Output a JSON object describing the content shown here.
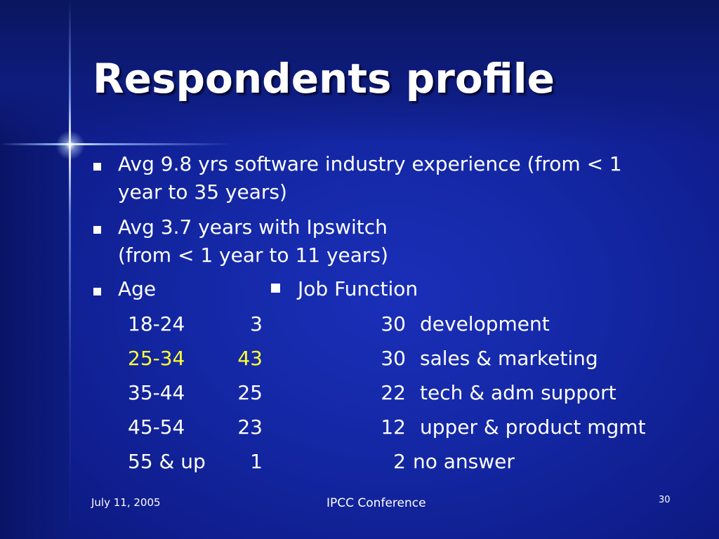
{
  "title": "Respondents profile",
  "bullets": [
    {
      "line1": "Avg 9.8 yrs software industry experience (from < 1",
      "line2": "year to 35 years)"
    },
    {
      "line1": "Avg 3.7 years with Ipswitch",
      "line2": "(from < 1 year to 11 years)"
    }
  ],
  "age_header": "Age",
  "job_header": "Job Function",
  "age_rows": [
    {
      "range": "18-24",
      "count": "3"
    },
    {
      "range": "25-34",
      "count": "43"
    },
    {
      "range": "35-44",
      "count": "25"
    },
    {
      "range": "45-54",
      "count": "23"
    },
    {
      "range": "55 & up",
      "count": "1"
    }
  ],
  "job_rows": [
    {
      "count": "30",
      "label": "development"
    },
    {
      "count": "30",
      "label": "sales & marketing"
    },
    {
      "count": "22",
      "label": "tech & adm support"
    },
    {
      "count": "12",
      "label": "upper & product mgmt"
    },
    {
      "count": "2",
      "label": "no answer"
    }
  ],
  "highlight_color": "#ffff33",
  "footer": {
    "date": "July 11, 2005",
    "center": "IPCC Conference",
    "page": "30"
  }
}
